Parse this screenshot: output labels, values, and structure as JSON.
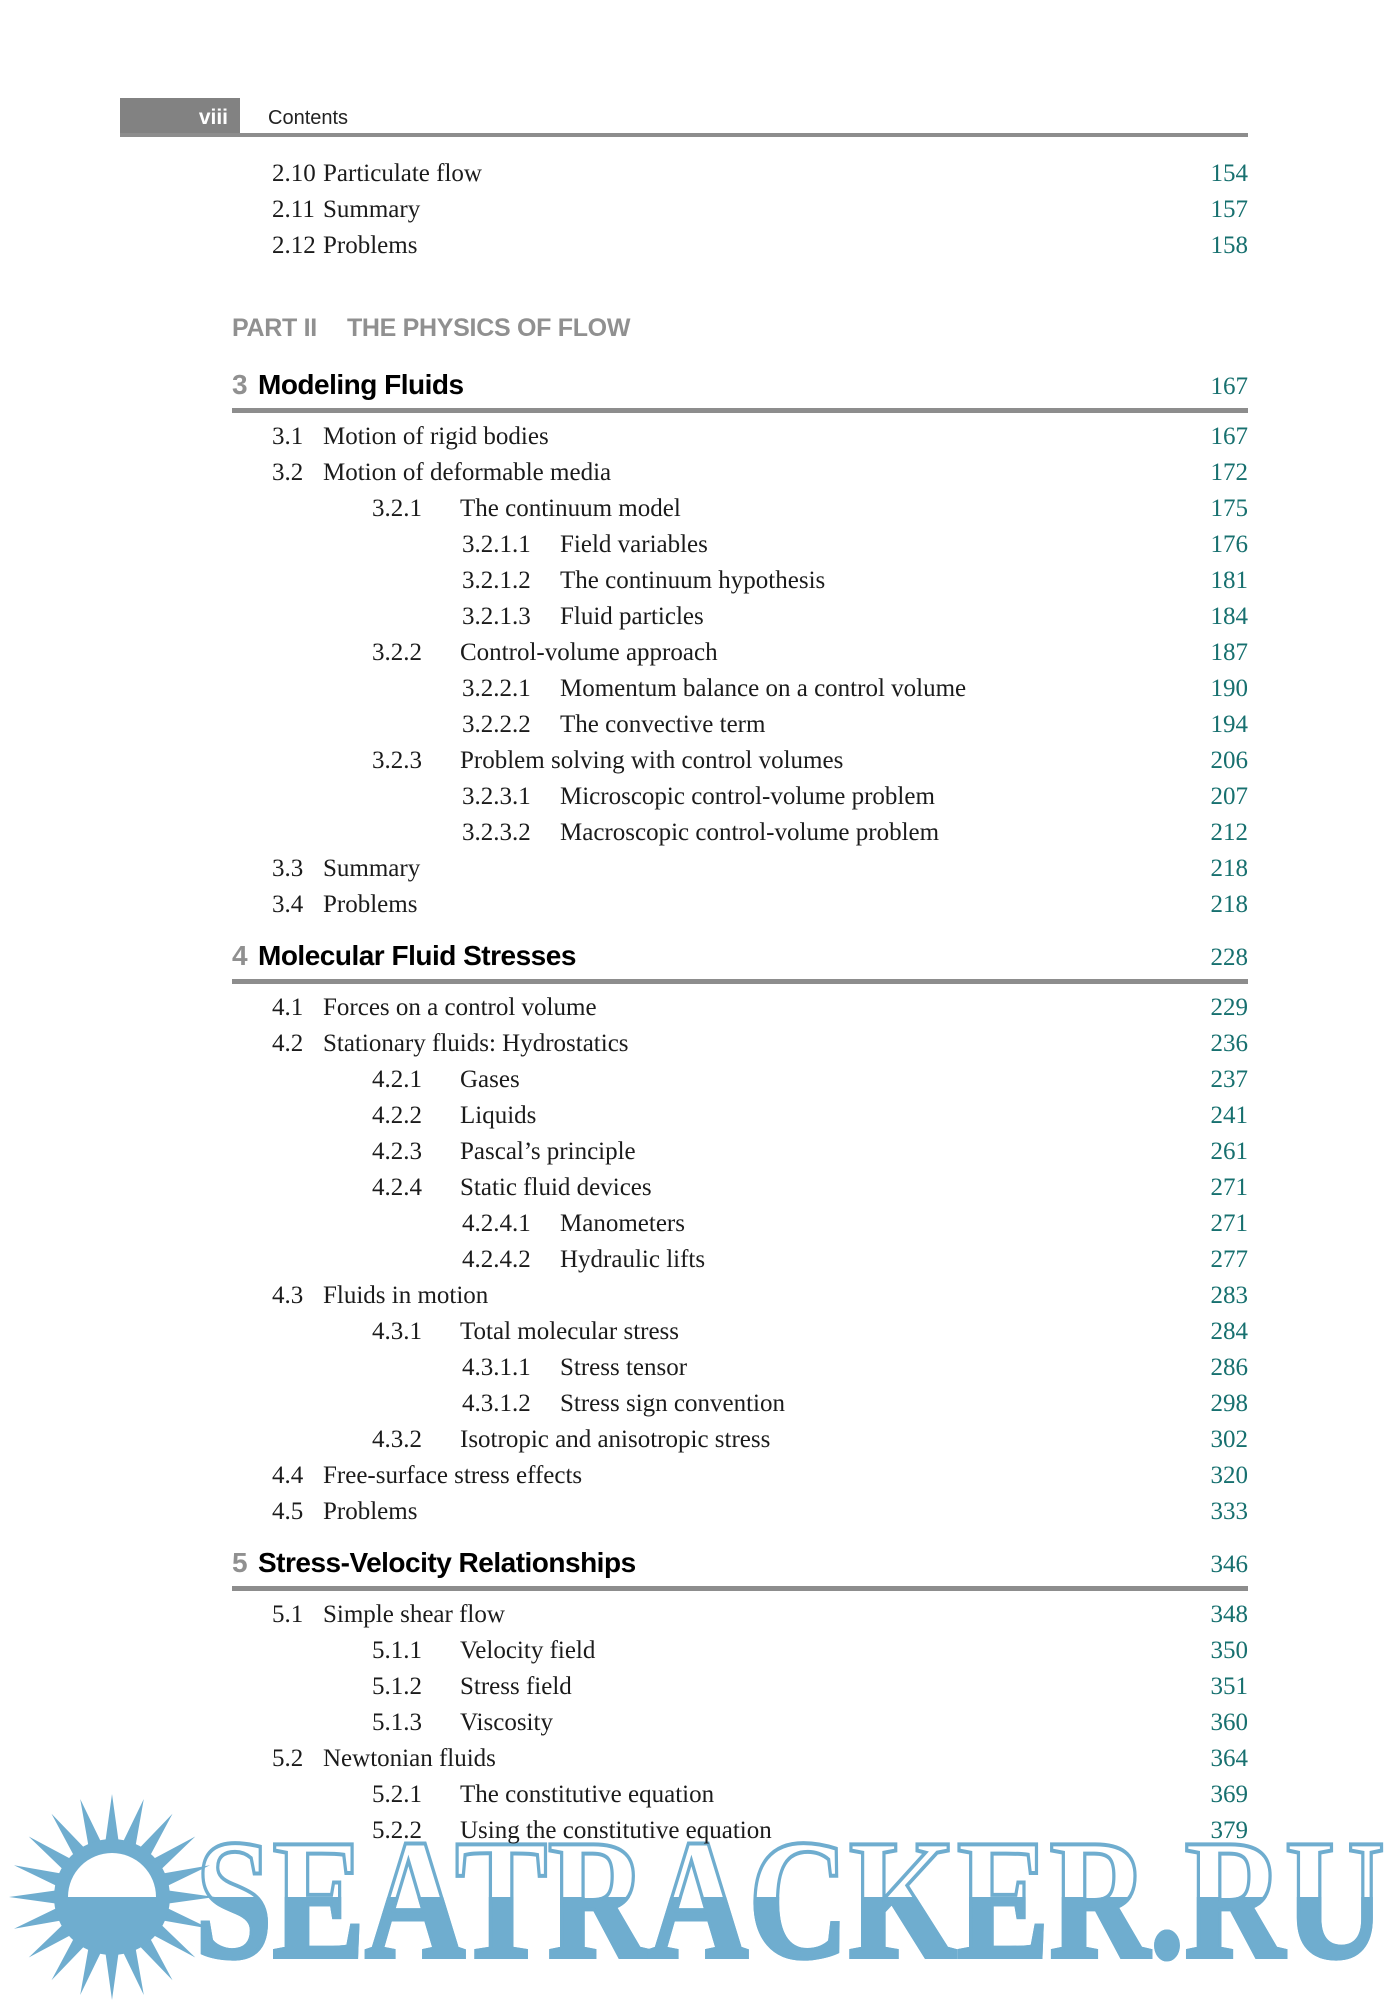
{
  "header": {
    "page_label": "viii",
    "title": "Contents"
  },
  "part": {
    "label": "PART II",
    "title": "THE PHYSICS OF FLOW"
  },
  "front_entries": [
    {
      "level": 1,
      "num": "2.10",
      "title": "Particulate flow",
      "page": "154"
    },
    {
      "level": 1,
      "num": "2.11",
      "title": "Summary",
      "page": "157"
    },
    {
      "level": 1,
      "num": "2.12",
      "title": "Problems",
      "page": "158"
    }
  ],
  "chapters": [
    {
      "num": "3",
      "title": "Modeling Fluids",
      "page": "167",
      "entries": [
        {
          "level": 1,
          "num": "3.1",
          "title": "Motion of rigid bodies",
          "page": "167"
        },
        {
          "level": 1,
          "num": "3.2",
          "title": "Motion of deformable media",
          "page": "172"
        },
        {
          "level": 2,
          "num": "3.2.1",
          "title": "The continuum model",
          "page": "175"
        },
        {
          "level": 3,
          "num": "3.2.1.1",
          "title": "Field variables",
          "page": "176"
        },
        {
          "level": 3,
          "num": "3.2.1.2",
          "title": "The continuum hypothesis",
          "page": "181"
        },
        {
          "level": 3,
          "num": "3.2.1.3",
          "title": "Fluid particles",
          "page": "184"
        },
        {
          "level": 2,
          "num": "3.2.2",
          "title": "Control-volume approach",
          "page": "187"
        },
        {
          "level": 3,
          "num": "3.2.2.1",
          "title": "Momentum balance on a control volume",
          "page": "190"
        },
        {
          "level": 3,
          "num": "3.2.2.2",
          "title": "The convective term",
          "page": "194"
        },
        {
          "level": 2,
          "num": "3.2.3",
          "title": "Problem solving with control volumes",
          "page": "206"
        },
        {
          "level": 3,
          "num": "3.2.3.1",
          "title": "Microscopic control-volume problem",
          "page": "207"
        },
        {
          "level": 3,
          "num": "3.2.3.2",
          "title": "Macroscopic control-volume problem",
          "page": "212"
        },
        {
          "level": 1,
          "num": "3.3",
          "title": "Summary",
          "page": "218"
        },
        {
          "level": 1,
          "num": "3.4",
          "title": "Problems",
          "page": "218"
        }
      ]
    },
    {
      "num": "4",
      "title": "Molecular Fluid Stresses",
      "page": "228",
      "entries": [
        {
          "level": 1,
          "num": "4.1",
          "title": "Forces on a control volume",
          "page": "229"
        },
        {
          "level": 1,
          "num": "4.2",
          "title": "Stationary fluids: Hydrostatics",
          "page": "236"
        },
        {
          "level": 2,
          "num": "4.2.1",
          "title": "Gases",
          "page": "237"
        },
        {
          "level": 2,
          "num": "4.2.2",
          "title": "Liquids",
          "page": "241"
        },
        {
          "level": 2,
          "num": "4.2.3",
          "title": "Pascal’s principle",
          "page": "261"
        },
        {
          "level": 2,
          "num": "4.2.4",
          "title": "Static fluid devices",
          "page": "271"
        },
        {
          "level": 3,
          "num": "4.2.4.1",
          "title": "Manometers",
          "page": "271"
        },
        {
          "level": 3,
          "num": "4.2.4.2",
          "title": "Hydraulic lifts",
          "page": "277"
        },
        {
          "level": 1,
          "num": "4.3",
          "title": "Fluids in motion",
          "page": "283"
        },
        {
          "level": 2,
          "num": "4.3.1",
          "title": "Total molecular stress",
          "page": "284"
        },
        {
          "level": 3,
          "num": "4.3.1.1",
          "title": "Stress tensor",
          "page": "286"
        },
        {
          "level": 3,
          "num": "4.3.1.2",
          "title": "Stress sign convention",
          "page": "298"
        },
        {
          "level": 2,
          "num": "4.3.2",
          "title": "Isotropic and anisotropic stress",
          "page": "302"
        },
        {
          "level": 1,
          "num": "4.4",
          "title": "Free-surface stress effects",
          "page": "320"
        },
        {
          "level": 1,
          "num": "4.5",
          "title": "Problems",
          "page": "333"
        }
      ]
    },
    {
      "num": "5",
      "title": "Stress-Velocity Relationships",
      "page": "346",
      "entries": [
        {
          "level": 1,
          "num": "5.1",
          "title": "Simple shear flow",
          "page": "348"
        },
        {
          "level": 2,
          "num": "5.1.1",
          "title": "Velocity field",
          "page": "350"
        },
        {
          "level": 2,
          "num": "5.1.2",
          "title": "Stress field",
          "page": "351"
        },
        {
          "level": 2,
          "num": "5.1.3",
          "title": "Viscosity",
          "page": "360"
        },
        {
          "level": 1,
          "num": "5.2",
          "title": "Newtonian fluids",
          "page": "364"
        },
        {
          "level": 2,
          "num": "5.2.1",
          "title": "The constitutive equation",
          "page": "369"
        },
        {
          "level": 2,
          "num": "5.2.2",
          "title": "Using the constitutive equation",
          "page": "379"
        }
      ]
    }
  ],
  "watermark": {
    "text": "SEATRACKER.RU",
    "color": "#6FADCF"
  },
  "colors": {
    "page_number_teal": "#17706F",
    "rule_gray": "#8D8D8D",
    "header_box_gray": "#828282",
    "heading_gray": "#909090"
  }
}
